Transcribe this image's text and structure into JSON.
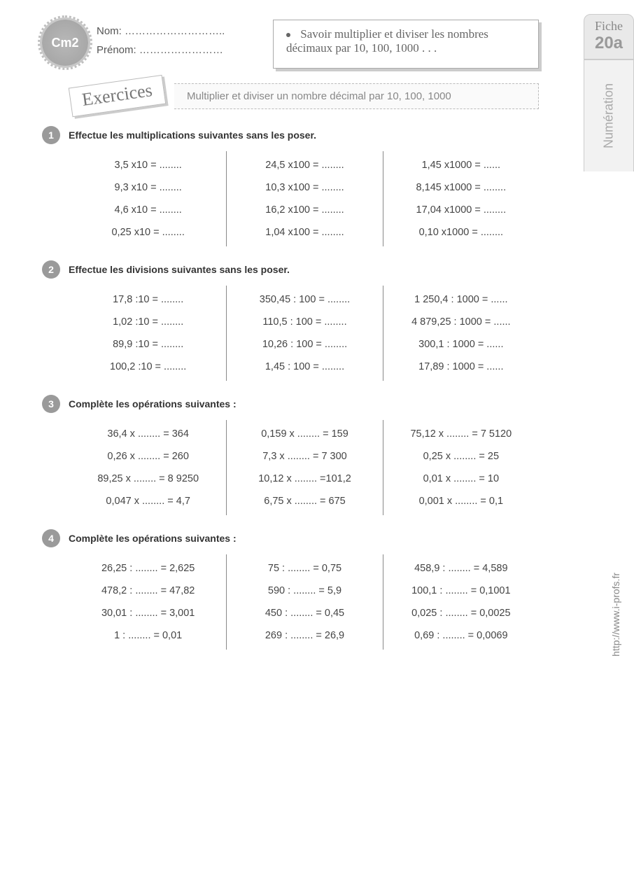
{
  "header": {
    "level_badge": "Cm2",
    "name_label": "Nom: ………………………..",
    "firstname_label": "Prénom: ……………………",
    "goal_text": "Savoir multiplier et diviser les nombres décimaux par 10, 100, 1000 . . ."
  },
  "side": {
    "fiche_label": "Fiche",
    "fiche_number": "20a",
    "vertical_label": "Numération",
    "url": "http://www.i-profs.fr"
  },
  "banner": {
    "script": "Exercices",
    "title": "Multiplier et diviser un nombre décimal par 10, 100, 1000"
  },
  "exercises": [
    {
      "num": "1",
      "instr": "Effectue les multiplications suivantes sans les poser.",
      "cols": [
        [
          "3,5 x10 =  ........",
          "9,3 x10 =  ........",
          "4,6 x10 =  ........",
          "0,25 x10 =  ........"
        ],
        [
          "24,5 x100 = ........",
          "10,3 x100 = ........",
          "16,2 x100 = ........",
          "1,04 x100 = ........"
        ],
        [
          "1,45 x1000 = ......",
          "8,145 x1000 = ........",
          "17,04 x1000 = ........",
          "0,10 x1000 = ........"
        ]
      ]
    },
    {
      "num": "2",
      "instr": "Effectue les divisions suivantes sans les poser.",
      "cols": [
        [
          "17,8 :10 =  ........",
          "1,02 :10 =  ........",
          "89,9 :10 =  ........",
          "100,2 :10 =  ........"
        ],
        [
          "350,45 : 100 = ........",
          "110,5 : 100 = ........",
          "10,26 : 100 = ........",
          "1,45 : 100 = ........"
        ],
        [
          "1 250,4 : 1000 = ......",
          "4 879,25 : 1000 = ......",
          "300,1 : 1000 = ......",
          "17,89 : 1000 = ......"
        ]
      ]
    },
    {
      "num": "3",
      "instr": "Complète les opérations suivantes :",
      "cols": [
        [
          "36,4 x ........ = 364",
          "0,26 x ........ =  260",
          "89,25 x ........ = 8 9250",
          "0,047 x ........ = 4,7"
        ],
        [
          "0,159 x ........ =  159",
          "7,3 x ........ =  7 300",
          "10,12 x ........ =101,2",
          "6,75 x ........ =  675"
        ],
        [
          "75,12 x ........ = 7 5120",
          "0,25 x ........ =  25",
          "0,01 x ........ = 10",
          "0,001 x ........ = 0,1"
        ]
      ]
    },
    {
      "num": "4",
      "instr": "Complète les opérations suivantes :",
      "cols": [
        [
          "26,25 : ........ = 2,625",
          "478,2 : ........ = 47,82",
          "30,01 : ........ = 3,001",
          "1 : ........ = 0,01"
        ],
        [
          "75 : ........ = 0,75",
          "590 : ........ = 5,9",
          "450 : ........ = 0,45",
          "269 : ........ = 26,9"
        ],
        [
          "458,9 : ........ = 4,589",
          "100,1 : ........ = 0,1001",
          "0,025 : ........ = 0,0025",
          "0,69 : ........ = 0,0069"
        ]
      ]
    }
  ]
}
